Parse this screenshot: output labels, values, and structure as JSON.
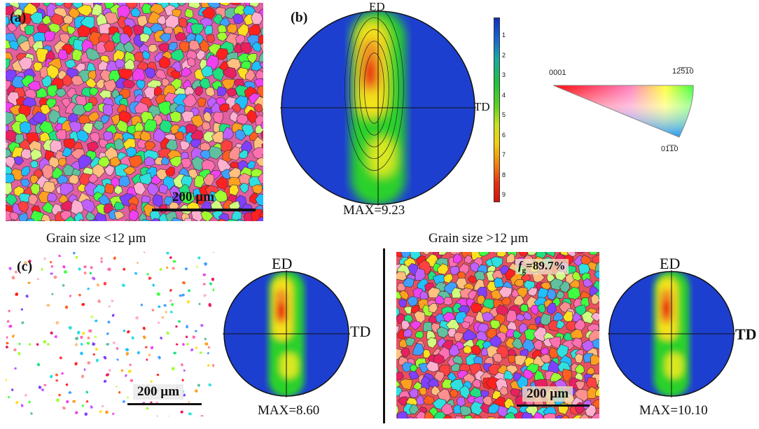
{
  "figure": {
    "panel_a": {
      "label": "(a)",
      "scale_bar_text": "200 µm"
    },
    "panel_b": {
      "label": "(b)",
      "pole_top": "ED",
      "pole_right": "TD",
      "max_text": "MAX=9.23",
      "colorbar_ticks": [
        "1",
        "2",
        "3",
        "4",
        "5",
        "6",
        "7",
        "8",
        "9"
      ]
    },
    "ipf_key": {
      "corner_0001": "0001",
      "corner_1210": "12̅5̅1̅0",
      "corner_0110": "01̅1̅0"
    },
    "panel_c": {
      "label": "(c)",
      "title_small": "Grain size <12 µm",
      "title_large": "Grain size >12 µm",
      "small_scale_text": "200 µm",
      "small_pole_top": "ED",
      "small_pole_right": "TD",
      "small_max_text": "MAX=8.60",
      "large_fraction_symbol": "f",
      "large_fraction_sub": "g",
      "large_fraction_value": "=89.7%",
      "large_scale_text": "200 µm",
      "large_pole_top": "ED",
      "large_pole_right": "TD",
      "large_max_text": "MAX=10.10"
    },
    "colors": {
      "pole_background": "#1d3fd0",
      "texture_low": "#2bd12b",
      "texture_mid": "#f2e11a",
      "texture_high": "#e8180c"
    }
  }
}
